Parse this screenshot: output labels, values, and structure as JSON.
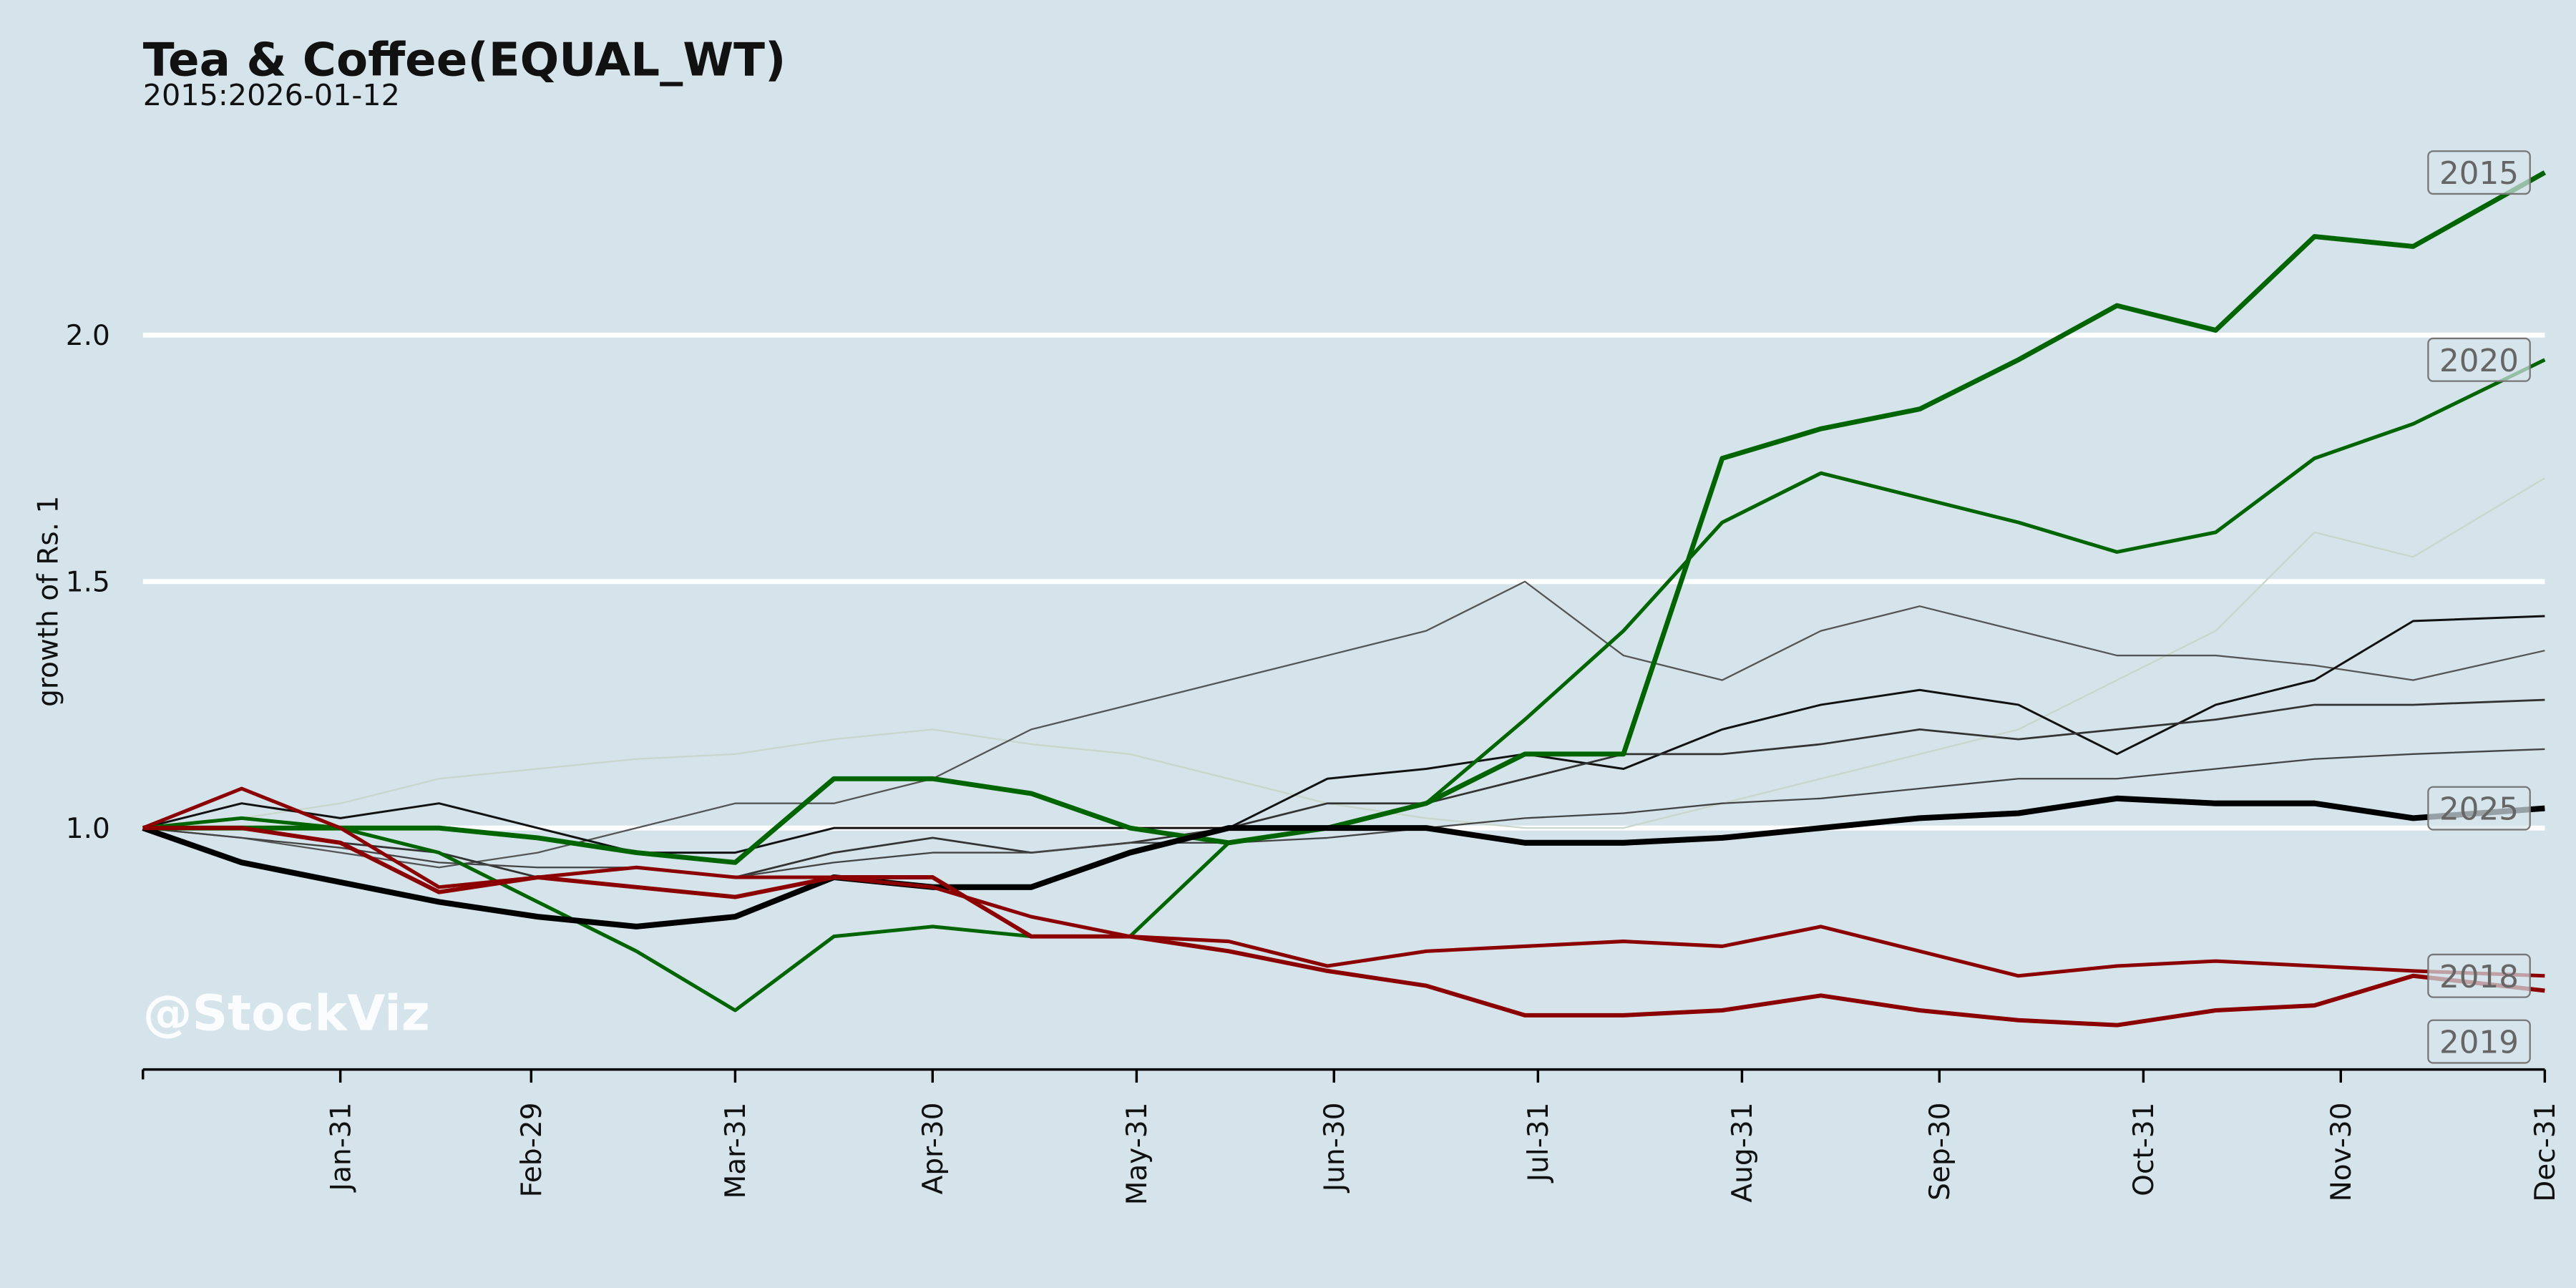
{
  "chart_data": {
    "type": "line",
    "title": "Tea & Coffee(EQUAL_WT)",
    "subtitle": "2015:2026-01-12",
    "y_label": "growth of Rs. 1",
    "watermark": "@StockViz",
    "x": [
      0,
      15,
      30,
      45,
      60,
      75,
      90,
      105,
      120,
      135,
      150,
      165,
      180,
      195,
      210,
      225,
      240,
      255,
      270,
      285,
      300,
      315,
      330,
      345,
      365
    ],
    "xlim": [
      0,
      365
    ],
    "xticks": [
      {
        "value": 30,
        "label": "Jan-31"
      },
      {
        "value": 59,
        "label": "Feb-29"
      },
      {
        "value": 90,
        "label": "Mar-31"
      },
      {
        "value": 120,
        "label": "Apr-30"
      },
      {
        "value": 151,
        "label": "May-31"
      },
      {
        "value": 181,
        "label": "Jun-30"
      },
      {
        "value": 212,
        "label": "Jul-31"
      },
      {
        "value": 243,
        "label": "Aug-31"
      },
      {
        "value": 273,
        "label": "Sep-30"
      },
      {
        "value": 304,
        "label": "Oct-31"
      },
      {
        "value": 334,
        "label": "Nov-30"
      },
      {
        "value": 365,
        "label": "Dec-31"
      }
    ],
    "ylim": [
      0.51,
      2.48
    ],
    "yticks": [
      {
        "value": 1,
        "label": "1.0"
      },
      {
        "value": 1.5,
        "label": "1.5"
      },
      {
        "value": 2,
        "label": "2.0"
      }
    ],
    "grid": true,
    "series": [
      {
        "color": "#c9d6cc",
        "linewidth": 1,
        "values": [
          1.0,
          1.02,
          1.05,
          1.1,
          1.12,
          1.14,
          1.15,
          1.18,
          1.2,
          1.17,
          1.15,
          1.1,
          1.05,
          1.02,
          1.0,
          1.0,
          1.05,
          1.1,
          1.15,
          1.2,
          1.3,
          1.4,
          1.6,
          1.55,
          1.71
        ]
      },
      {
        "color": "#555555",
        "linewidth": 1,
        "values": [
          1.0,
          0.98,
          0.95,
          0.92,
          0.95,
          1.0,
          1.05,
          1.05,
          1.1,
          1.2,
          1.25,
          1.3,
          1.35,
          1.4,
          1.5,
          1.35,
          1.3,
          1.4,
          1.45,
          1.4,
          1.35,
          1.35,
          1.33,
          1.3,
          1.36
        ]
      },
      {
        "color": "#111111",
        "linewidth": 1.3,
        "values": [
          1.0,
          1.05,
          1.02,
          1.05,
          1.0,
          0.95,
          0.95,
          1.0,
          1.0,
          1.0,
          1.0,
          1.0,
          1.1,
          1.12,
          1.15,
          1.12,
          1.2,
          1.25,
          1.28,
          1.25,
          1.15,
          1.25,
          1.3,
          1.42,
          1.43
        ]
      },
      {
        "color": "#333333",
        "linewidth": 1.2,
        "values": [
          1.0,
          1.0,
          0.97,
          0.95,
          0.9,
          0.92,
          0.9,
          0.95,
          0.98,
          0.95,
          0.97,
          1.0,
          1.05,
          1.05,
          1.1,
          1.15,
          1.15,
          1.17,
          1.2,
          1.18,
          1.2,
          1.22,
          1.25,
          1.25,
          1.26
        ]
      },
      {
        "color": "#444444",
        "linewidth": 1,
        "values": [
          1.0,
          0.98,
          0.96,
          0.93,
          0.92,
          0.92,
          0.9,
          0.93,
          0.95,
          0.95,
          0.97,
          0.97,
          0.98,
          1.0,
          1.02,
          1.03,
          1.05,
          1.06,
          1.08,
          1.1,
          1.1,
          1.12,
          1.14,
          1.15,
          1.16
        ]
      },
      {
        "name": "2015",
        "color": "#006400",
        "linewidth": 3,
        "values": [
          1.0,
          1.0,
          1.0,
          1.0,
          0.98,
          0.95,
          0.93,
          1.1,
          1.1,
          1.07,
          1.0,
          0.97,
          1.0,
          1.05,
          1.15,
          1.15,
          1.75,
          1.81,
          1.85,
          1.95,
          2.06,
          2.01,
          2.2,
          2.18,
          2.33
        ]
      },
      {
        "name": "2020",
        "color": "#006400",
        "linewidth": 2.2,
        "values": [
          1.0,
          1.02,
          1.0,
          0.95,
          0.85,
          0.75,
          0.63,
          0.78,
          0.8,
          0.78,
          0.78,
          0.97,
          1.0,
          1.05,
          1.22,
          1.4,
          1.62,
          1.72,
          1.67,
          1.62,
          1.56,
          1.6,
          1.75,
          1.82,
          1.95
        ]
      },
      {
        "name": "2025",
        "color": "#000000",
        "linewidth": 3.5,
        "values": [
          1.0,
          0.93,
          0.89,
          0.85,
          0.82,
          0.8,
          0.82,
          0.9,
          0.88,
          0.88,
          0.95,
          1.0,
          1.0,
          1.0,
          0.97,
          0.97,
          0.98,
          1.0,
          1.02,
          1.03,
          1.06,
          1.05,
          1.05,
          1.02,
          1.04
        ]
      },
      {
        "name": "2018",
        "color": "#8b0000",
        "linewidth": 2.2,
        "values": [
          1.0,
          1.08,
          1.0,
          0.88,
          0.9,
          0.92,
          0.9,
          0.9,
          0.88,
          0.82,
          0.78,
          0.77,
          0.72,
          0.75,
          0.76,
          0.77,
          0.76,
          0.8,
          0.75,
          0.7,
          0.72,
          0.73,
          0.72,
          0.71,
          0.7
        ]
      },
      {
        "name": "2019",
        "color": "#8b0000",
        "linewidth": 2.6,
        "values": [
          1.0,
          1.0,
          0.97,
          0.87,
          0.9,
          0.88,
          0.86,
          0.9,
          0.9,
          0.78,
          0.78,
          0.75,
          0.71,
          0.68,
          0.62,
          0.62,
          0.63,
          0.66,
          0.63,
          0.61,
          0.6,
          0.63,
          0.64,
          0.7,
          0.67
        ]
      }
    ]
  }
}
